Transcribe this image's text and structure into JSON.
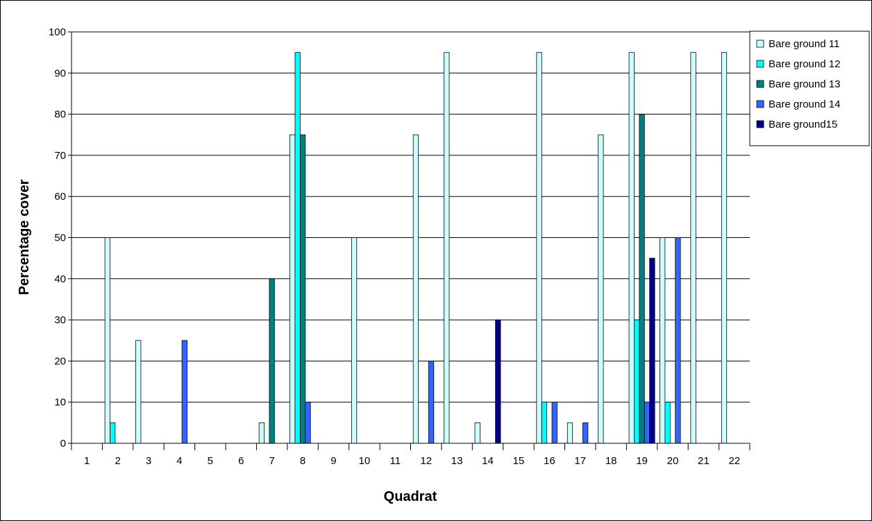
{
  "chart_data": {
    "type": "bar",
    "xlabel": "Quadrat",
    "ylabel": "Percentage cover",
    "ylim": [
      0,
      100
    ],
    "yticks": [
      0,
      10,
      20,
      30,
      40,
      50,
      60,
      70,
      80,
      90,
      100
    ],
    "grid": true,
    "legend_position": "top-right",
    "categories": [
      "1",
      "2",
      "3",
      "4",
      "5",
      "6",
      "7",
      "8",
      "9",
      "10",
      "11",
      "12",
      "13",
      "14",
      "15",
      "16",
      "17",
      "18",
      "19",
      "20",
      "21",
      "22"
    ],
    "series": [
      {
        "name": "Bare ground 11",
        "color": "#ccffff",
        "values": [
          0,
          50,
          25,
          0,
          0,
          0,
          5,
          75,
          0,
          50,
          0,
          75,
          95,
          5,
          0,
          95,
          5,
          75,
          95,
          50,
          95,
          95
        ]
      },
      {
        "name": "Bare ground 12",
        "color": "#00ffff",
        "values": [
          0,
          5,
          0,
          0,
          0,
          0,
          0,
          95,
          0,
          0,
          0,
          0,
          0,
          0,
          0,
          10,
          0,
          0,
          30,
          10,
          0,
          0
        ]
      },
      {
        "name": "Bare ground 13",
        "color": "#008080",
        "values": [
          0,
          0,
          0,
          0,
          0,
          0,
          40,
          75,
          0,
          0,
          0,
          0,
          0,
          0,
          0,
          0,
          0,
          0,
          80,
          0,
          0,
          0
        ]
      },
      {
        "name": "Bare ground 14",
        "color": "#3366ff",
        "values": [
          0,
          0,
          0,
          25,
          0,
          0,
          0,
          10,
          0,
          0,
          0,
          20,
          0,
          0,
          0,
          10,
          5,
          0,
          10,
          50,
          0,
          0
        ]
      },
      {
        "name": "Bare ground15",
        "color": "#000080",
        "values": [
          0,
          0,
          0,
          0,
          0,
          0,
          0,
          0,
          0,
          0,
          0,
          0,
          0,
          30,
          0,
          0,
          0,
          0,
          45,
          0,
          0,
          0
        ]
      }
    ]
  }
}
